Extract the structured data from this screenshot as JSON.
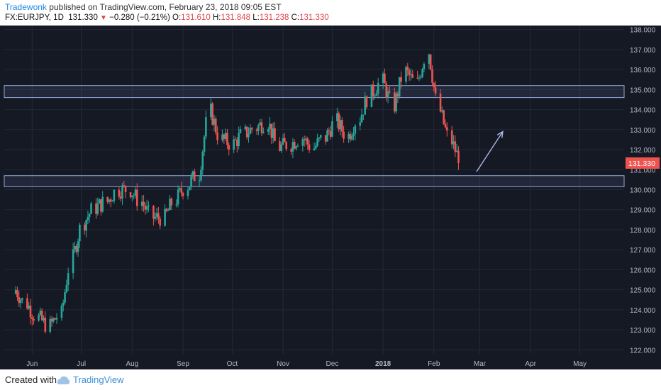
{
  "header": {
    "author": "Tradewonk",
    "published_text": "published on TradingView.com, February 23, 2018 09:05 EST",
    "symbol": "FX:EURJPY, 1D",
    "last_price": "131.330",
    "change_arrow": "▼",
    "change": "−0.280 (−0.21%)",
    "open_label": "O:",
    "open": "131.610",
    "high_label": "H:",
    "high": "131.848",
    "low_label": "L:",
    "low": "131.238",
    "close_label": "C:",
    "close": "131.330"
  },
  "footer": {
    "created_with": "Created with",
    "brand": "TradingView"
  },
  "colors": {
    "background": "#151924",
    "grid": "#232937",
    "up": "#26a69a",
    "down": "#ef5350",
    "zone": "#8fa9d6",
    "arrow": "#a9b8e8",
    "price_label": "#ef5350"
  },
  "chart_data": {
    "type": "candlestick",
    "symbol": "FX:EURJPY",
    "interval": "1D",
    "ylim": [
      121.8,
      138.2
    ],
    "yticks": [
      "122.000",
      "123.000",
      "124.000",
      "125.000",
      "126.000",
      "127.000",
      "128.000",
      "129.000",
      "130.000",
      "131.000",
      "132.000",
      "133.000",
      "134.000",
      "135.000",
      "136.000",
      "137.000",
      "138.000"
    ],
    "xticks": [
      "Jun",
      "Jul",
      "Aug",
      "Sep",
      "Oct",
      "Nov",
      "Dec",
      "2018",
      "Feb",
      "Mar",
      "Apr",
      "May"
    ],
    "last_price_label": "131.330",
    "grid": true,
    "zones": [
      {
        "from": 134.6,
        "to": 135.2
      },
      {
        "from": 130.15,
        "to": 130.7
      }
    ],
    "arrow": {
      "from": [
        "2018-02-27",
        130.9
      ],
      "to": [
        "2018-03-15",
        132.9
      ]
    },
    "series_close": [
      [
        "2017-05-22",
        125.0
      ],
      [
        "2017-05-29",
        124.3
      ],
      [
        "2017-06-05",
        123.6
      ],
      [
        "2017-06-12",
        123.2
      ],
      [
        "2017-06-19",
        123.8
      ],
      [
        "2017-06-26",
        126.6
      ],
      [
        "2017-07-03",
        128.4
      ],
      [
        "2017-07-10",
        129.1
      ],
      [
        "2017-07-17",
        129.4
      ],
      [
        "2017-07-24",
        130.0
      ],
      [
        "2017-07-31",
        130.0
      ],
      [
        "2017-08-07",
        129.4
      ],
      [
        "2017-08-14",
        128.6
      ],
      [
        "2017-08-21",
        128.6
      ],
      [
        "2017-08-28",
        129.5
      ],
      [
        "2017-09-04",
        130.2
      ],
      [
        "2017-09-11",
        130.8
      ],
      [
        "2017-09-18",
        133.9
      ],
      [
        "2017-09-25",
        132.5
      ],
      [
        "2017-10-02",
        132.3
      ],
      [
        "2017-10-09",
        132.8
      ],
      [
        "2017-10-16",
        133.1
      ],
      [
        "2017-10-23",
        133.4
      ],
      [
        "2017-10-30",
        132.1
      ],
      [
        "2017-11-06",
        132.3
      ],
      [
        "2017-11-13",
        132.6
      ],
      [
        "2017-11-20",
        132.1
      ],
      [
        "2017-11-27",
        132.6
      ],
      [
        "2017-12-04",
        133.4
      ],
      [
        "2017-12-11",
        132.7
      ],
      [
        "2017-12-18",
        133.6
      ],
      [
        "2017-12-25",
        134.8
      ],
      [
        "2018-01-01",
        135.4
      ],
      [
        "2018-01-08",
        134.2
      ],
      [
        "2018-01-15",
        135.9
      ],
      [
        "2018-01-22",
        135.3
      ],
      [
        "2018-01-29",
        136.9
      ],
      [
        "2018-02-05",
        133.9
      ],
      [
        "2018-02-12",
        132.4
      ],
      [
        "2018-02-19",
        131.33
      ]
    ]
  }
}
